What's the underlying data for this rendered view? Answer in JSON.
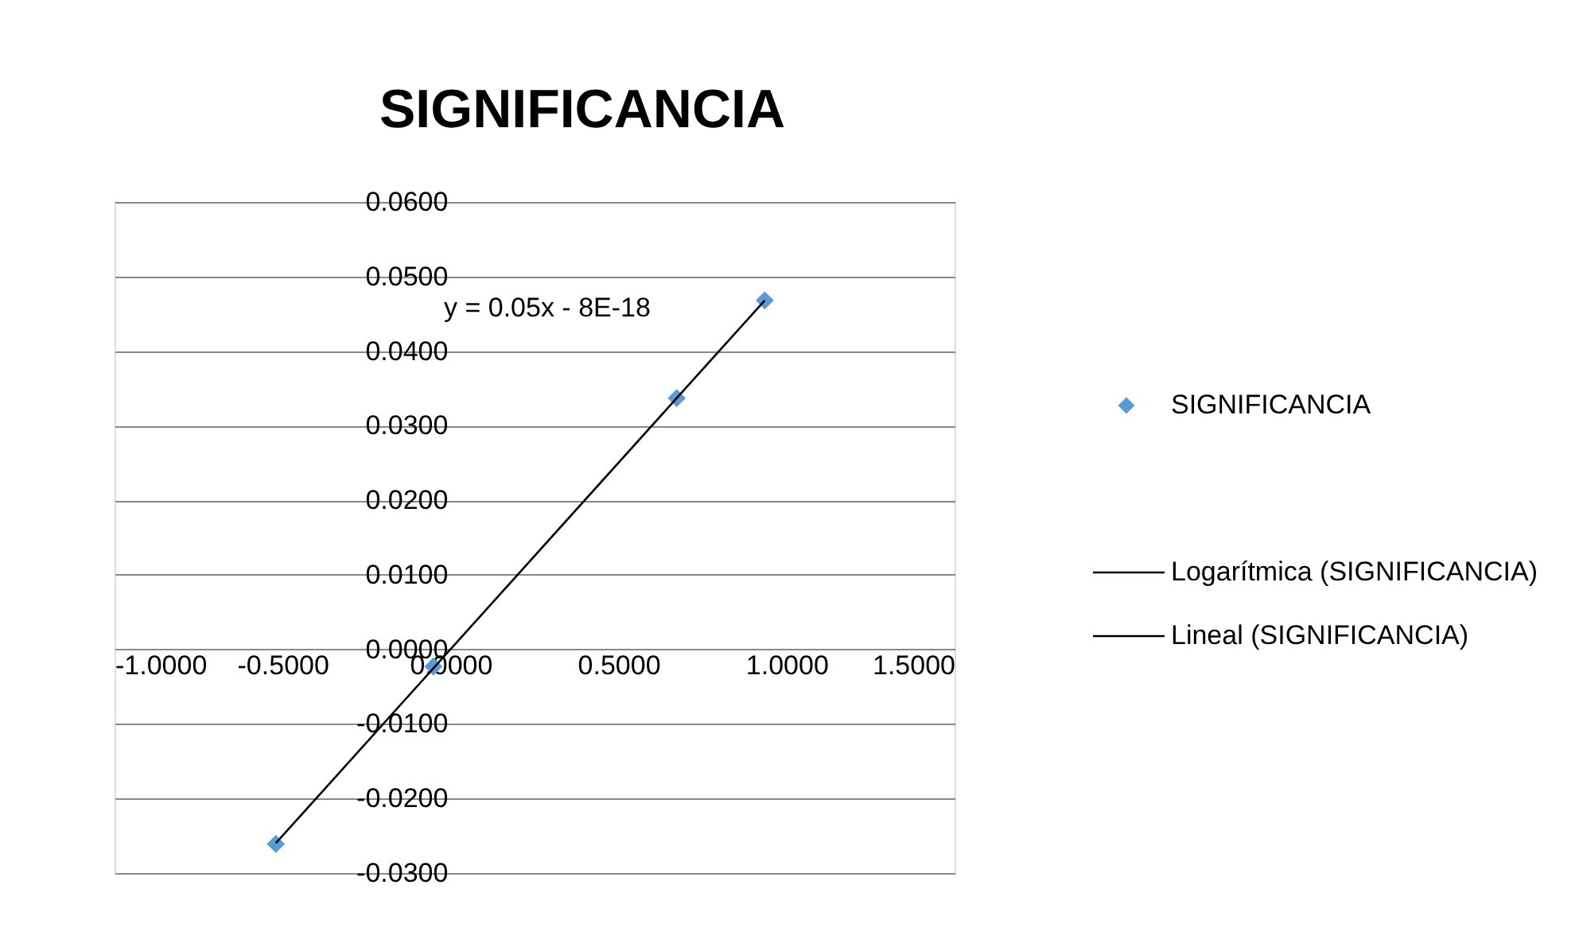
{
  "chart_data": {
    "type": "scatter",
    "title": "SIGNIFICANCIA",
    "series": [
      {
        "name": "SIGNIFICANCIA",
        "color": "#5b9bd5",
        "marker": "diamond",
        "x": [
          -0.52,
          -0.051,
          0.673,
          0.935
        ],
        "values": [
          -0.0261,
          -0.0023,
          0.0337,
          0.0468
        ]
      },
      {
        "name": "Logarítmica (SIGNIFICANCIA)",
        "type": "line",
        "color": "#000000"
      },
      {
        "name": "Lineal (SIGNIFICANCIA)",
        "type": "line",
        "color": "#000000",
        "x": [
          -0.52,
          0.935
        ],
        "values": [
          -0.026,
          0.0468
        ]
      }
    ],
    "annotations": [
      "y = 0.05x - 8E-18"
    ],
    "xlim": [
      -1,
      1.5
    ],
    "xticks": [
      {
        "value": -1,
        "label": "-1.0000"
      },
      {
        "value": -0.5,
        "label": "-0.5000"
      },
      {
        "value": 0,
        "label": "0.0000"
      },
      {
        "value": 0.5,
        "label": "0.5000"
      },
      {
        "value": 1,
        "label": "1.0000"
      },
      {
        "value": 1.5,
        "label": "1.5000"
      }
    ],
    "ylim": [
      -0.03,
      0.06
    ],
    "yticks": [
      {
        "value": -0.03,
        "label": "-0.0300"
      },
      {
        "value": -0.02,
        "label": "-0.0200"
      },
      {
        "value": -0.01,
        "label": "-0.0100"
      },
      {
        "value": 0,
        "label": "0.0000"
      },
      {
        "value": 0.01,
        "label": "0.0100"
      },
      {
        "value": 0.02,
        "label": "0.0200"
      },
      {
        "value": 0.03,
        "label": "0.0300"
      },
      {
        "value": 0.04,
        "label": "0.0400"
      },
      {
        "value": 0.05,
        "label": "0.0500"
      },
      {
        "value": 0.06,
        "label": "0.0600"
      }
    ],
    "grid": "y",
    "legend": "right"
  }
}
